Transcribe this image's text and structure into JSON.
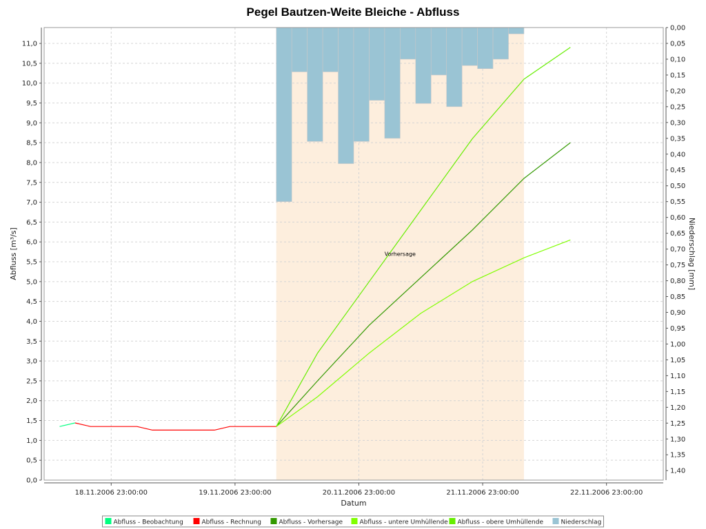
{
  "chart_data": {
    "type": "line",
    "title": "Pegel Bautzen-Weite Bleiche - Abfluss",
    "xlabel": "Datum",
    "ylabel": "Abfluss [m³/s]",
    "y2label": "Niederschlag [mm]",
    "annotation": "Vorhersage",
    "x_ticks": [
      "18.11.2006 23:00:00",
      "19.11.2006 23:00:00",
      "20.11.2006 23:00:00",
      "21.11.2006 23:00:00",
      "22.11.2006 23:00:00"
    ],
    "x_range_hours": [
      -53,
      67
    ],
    "ylim": [
      0,
      11.4
    ],
    "y_ticks": [
      "0,0",
      "0,5",
      "1,0",
      "1,5",
      "2,0",
      "2,5",
      "3,0",
      "3,5",
      "4,0",
      "4,5",
      "5,0",
      "5,5",
      "6,0",
      "6,5",
      "7,0",
      "7,5",
      "8,0",
      "8,5",
      "9,0",
      "9,5",
      "10,0",
      "10,5",
      "11,0"
    ],
    "y2lim": [
      0,
      1.43
    ],
    "y2_ticks": [
      "0,00",
      "0,05",
      "0,10",
      "0,15",
      "0,20",
      "0,25",
      "0,30",
      "0,35",
      "0,40",
      "0,45",
      "0,50",
      "0,55",
      "0,60",
      "0,65",
      "0,70",
      "0,75",
      "0,80",
      "0,85",
      "0,90",
      "0,95",
      "1,00",
      "1,05",
      "1,10",
      "1,15",
      "1,20",
      "1,25",
      "1,30",
      "1,35",
      "1,40"
    ],
    "forecast_range_hours": [
      -8,
      40
    ],
    "grid": true,
    "legend_position": "bottom",
    "series": [
      {
        "name": "Abfluss - Beobachtung",
        "color": "#00ff80",
        "x": [
          -50,
          -47
        ],
        "y": [
          1.35,
          1.44
        ]
      },
      {
        "name": "Abfluss - Rechnung",
        "color": "#ff0000",
        "x": [
          -47,
          -44,
          -35,
          -32,
          -23,
          -20,
          -17,
          -14,
          -11,
          -8
        ],
        "y": [
          1.44,
          1.35,
          1.35,
          1.26,
          1.26,
          1.26,
          1.35,
          1.35,
          1.35,
          1.35
        ]
      },
      {
        "name": "Abfluss - Vorhersage",
        "color": "#339900",
        "x": [
          -8,
          0,
          10,
          20,
          30,
          40,
          49
        ],
        "y": [
          1.35,
          2.5,
          3.9,
          5.1,
          6.3,
          7.6,
          8.5
        ]
      },
      {
        "name": "Abfluss - untere Umhüllende",
        "color": "#80ff00",
        "x": [
          -8,
          0,
          10,
          20,
          30,
          40,
          49
        ],
        "y": [
          1.35,
          2.1,
          3.2,
          4.2,
          5.0,
          5.6,
          6.05
        ]
      },
      {
        "name": "Abfluss - obere Umhüllende",
        "color": "#66ee00",
        "x": [
          -8,
          0,
          10,
          20,
          30,
          40,
          49
        ],
        "y": [
          1.35,
          3.2,
          5.0,
          6.8,
          8.6,
          10.1,
          10.9
        ]
      },
      {
        "name": "Niederschlag",
        "color": "#9ac4d4",
        "type": "bar",
        "bar_width_hours": 3,
        "x": [
          -8,
          -5,
          -2,
          1,
          4,
          7,
          10,
          13,
          16,
          19,
          22,
          25,
          28,
          31,
          34,
          37
        ],
        "y": [
          0.55,
          0.14,
          0.36,
          0.14,
          0.43,
          0.36,
          0.23,
          0.35,
          0.1,
          0.24,
          0.15,
          0.25,
          0.12,
          0.13,
          0.1,
          0.02
        ]
      }
    ]
  }
}
